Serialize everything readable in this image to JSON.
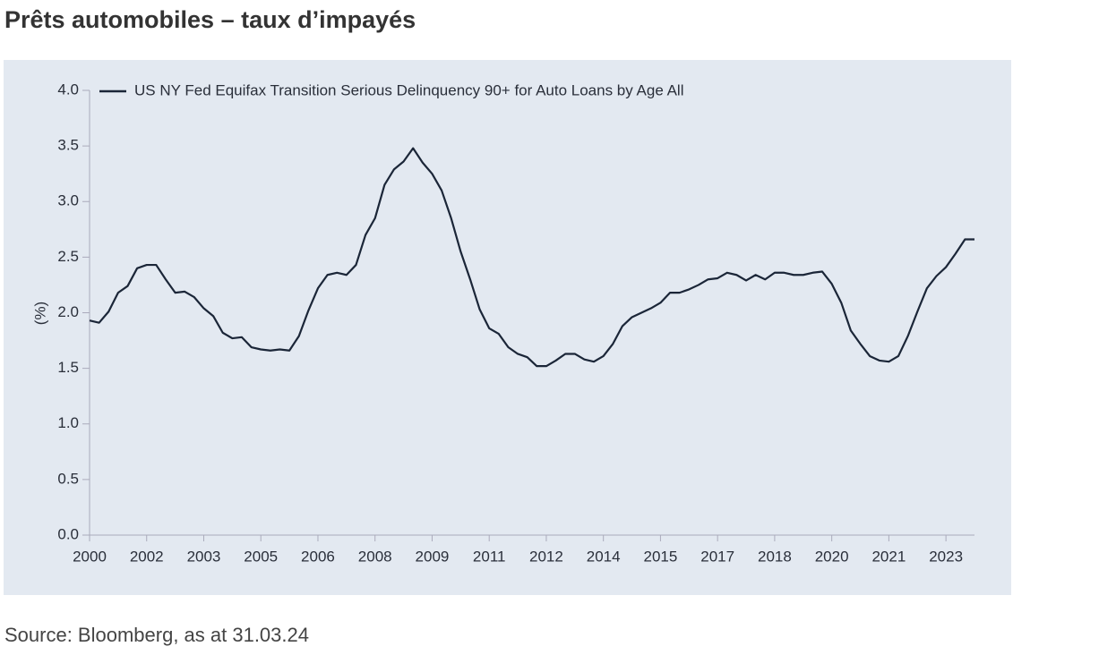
{
  "title": "Prêts automobiles – taux d’impayés",
  "source": "Source: Bloomberg, as at 31.03.24",
  "chart_data": {
    "type": "line",
    "y_label": "(%)",
    "legend": "upper left",
    "x": [
      2000,
      2000.25,
      2000.5,
      2000.75,
      2001,
      2001.25,
      2001.5,
      2001.75,
      2002,
      2002.25,
      2002.5,
      2002.75,
      2003,
      2003.25,
      2003.5,
      2003.75,
      2004,
      2004.25,
      2004.5,
      2004.75,
      2005,
      2005.25,
      2005.5,
      2005.75,
      2006,
      2006.25,
      2006.5,
      2006.75,
      2007,
      2007.25,
      2007.5,
      2007.75,
      2008,
      2008.25,
      2008.5,
      2008.75,
      2009,
      2009.25,
      2009.5,
      2009.75,
      2010,
      2010.25,
      2010.5,
      2010.75,
      2011,
      2011.25,
      2011.5,
      2011.75,
      2012,
      2012.25,
      2012.5,
      2012.75,
      2013,
      2013.25,
      2013.5,
      2013.75,
      2014,
      2014.25,
      2014.5,
      2014.75,
      2015,
      2015.25,
      2015.5,
      2015.75,
      2016,
      2016.25,
      2016.5,
      2016.75,
      2017,
      2017.25,
      2017.5,
      2017.75,
      2018,
      2018.25,
      2018.5,
      2018.75,
      2019,
      2019.25,
      2019.5,
      2019.75,
      2020,
      2020.25,
      2020.5,
      2020.75,
      2021,
      2021.25,
      2021.5,
      2021.75,
      2022,
      2022.25,
      2022.5,
      2022.75,
      2023,
      2023.25
    ],
    "series": [
      {
        "name": "US NY Fed Equifax Transition Serious Delinquency 90+ for Auto Loans by Age All",
        "color": "#1b2638",
        "values": [
          1.93,
          1.91,
          2.01,
          2.18,
          2.24,
          2.4,
          2.43,
          2.43,
          2.3,
          2.18,
          2.19,
          2.14,
          2.04,
          1.97,
          1.82,
          1.77,
          1.78,
          1.69,
          1.67,
          1.66,
          1.67,
          1.66,
          1.79,
          2.02,
          2.22,
          2.34,
          2.36,
          2.34,
          2.43,
          2.7,
          2.85,
          3.15,
          3.29,
          3.36,
          3.48,
          3.35,
          3.25,
          3.1,
          2.85,
          2.55,
          2.3,
          2.03,
          1.86,
          1.81,
          1.69,
          1.63,
          1.6,
          1.52,
          1.52,
          1.57,
          1.63,
          1.63,
          1.58,
          1.56,
          1.61,
          1.72,
          1.88,
          1.96,
          2.0,
          2.04,
          2.09,
          2.18,
          2.18,
          2.21,
          2.25,
          2.3,
          2.31,
          2.36,
          2.34,
          2.29,
          2.34,
          2.3,
          2.36,
          2.36,
          2.34,
          2.34,
          2.36,
          2.37,
          2.26,
          2.09,
          1.84,
          1.72,
          1.61,
          1.57,
          1.56,
          1.61,
          1.79,
          2.01,
          2.22,
          2.33,
          2.41,
          2.53,
          2.66,
          2.66
        ]
      }
    ],
    "xlim": [
      2000,
      2023.25
    ],
    "xticks": [
      {
        "value": 2000,
        "label": "2000"
      },
      {
        "value": 2001.5,
        "label": "2002"
      },
      {
        "value": 2003,
        "label": "2003"
      },
      {
        "value": 2004.5,
        "label": "2005"
      },
      {
        "value": 2006,
        "label": "2006"
      },
      {
        "value": 2007.5,
        "label": "2008"
      },
      {
        "value": 2009,
        "label": "2009"
      },
      {
        "value": 2010.5,
        "label": "2011"
      },
      {
        "value": 2012,
        "label": "2012"
      },
      {
        "value": 2013.5,
        "label": "2014"
      },
      {
        "value": 2015,
        "label": "2015"
      },
      {
        "value": 2016.5,
        "label": "2017"
      },
      {
        "value": 2018,
        "label": "2018"
      },
      {
        "value": 2019.5,
        "label": "2020"
      },
      {
        "value": 2021,
        "label": "2021"
      },
      {
        "value": 2022.5,
        "label": "2023"
      }
    ],
    "ylim": [
      0,
      4
    ],
    "yticks": [
      {
        "value": 0,
        "label": "0.0"
      },
      {
        "value": 0.5,
        "label": "0.5"
      },
      {
        "value": 1,
        "label": "1.0"
      },
      {
        "value": 1.5,
        "label": "1.5"
      },
      {
        "value": 2,
        "label": "2.0"
      },
      {
        "value": 2.5,
        "label": "2.5"
      },
      {
        "value": 3,
        "label": "3.0"
      },
      {
        "value": 3.5,
        "label": "3.5"
      },
      {
        "value": 4,
        "label": "4.0"
      }
    ],
    "grid": false
  }
}
